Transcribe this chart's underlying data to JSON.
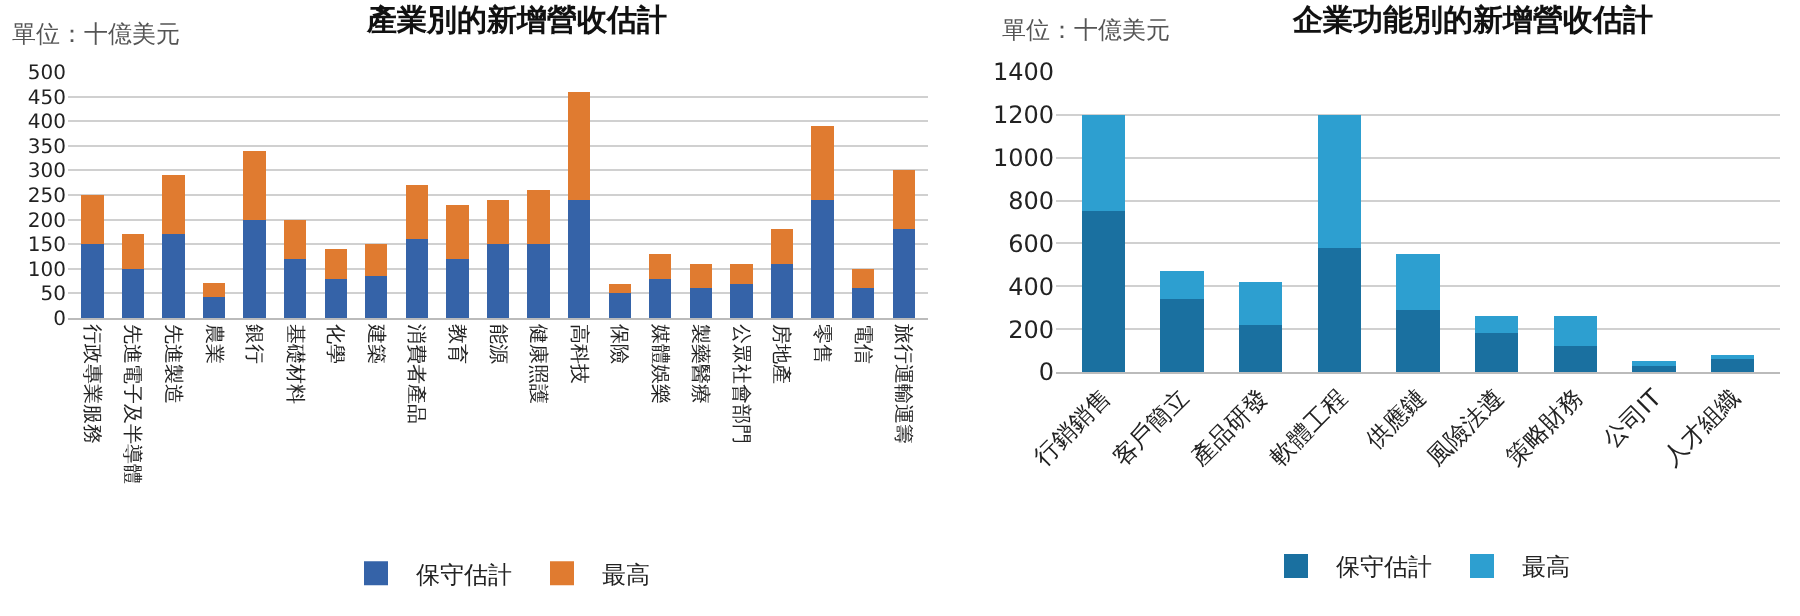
{
  "chart_data": [
    {
      "type": "bar",
      "stacked": true,
      "title": "產業別的新增營收估計",
      "annotations": [
        "單位：十億美元"
      ],
      "categories": [
        "行政專業服務",
        "先進電子及半導體",
        "先進製造",
        "農業",
        "銀行",
        "基礎材料",
        "化學",
        "建築",
        "消費者產品",
        "教育",
        "能源",
        "健康照護",
        "高科技",
        "保險",
        "媒體娛樂",
        "製藥醫療",
        "公眾社會部門",
        "房地產",
        "零售",
        "電信",
        "旅行運輸運籌"
      ],
      "series": [
        {
          "name": "保守估計",
          "color": "#3563a8",
          "values": [
            150,
            100,
            170,
            42,
            200,
            120,
            80,
            85,
            160,
            120,
            150,
            150,
            240,
            50,
            80,
            60,
            70,
            110,
            240,
            60,
            180
          ]
        },
        {
          "name": "最高",
          "color": "#e07b30",
          "values": [
            100,
            70,
            120,
            30,
            140,
            80,
            60,
            65,
            110,
            110,
            90,
            110,
            220,
            20,
            50,
            50,
            40,
            70,
            150,
            40,
            120
          ]
        }
      ],
      "ylim": [
        0,
        500
      ],
      "yticks": [
        0,
        50,
        100,
        150,
        200,
        250,
        300,
        350,
        400,
        450,
        500
      ],
      "grid": "y",
      "legend": "bottom"
    },
    {
      "type": "bar",
      "stacked": true,
      "title": "企業功能別的新增營收估計",
      "annotations": [
        "單位：十億美元"
      ],
      "categories": [
        "行銷銷售",
        "客戶簡立",
        "產品研發",
        "軟體工程",
        "供應鏈",
        "風險法遵",
        "策略財務",
        "公司IT",
        "人才組織"
      ],
      "series": [
        {
          "name": "保守估計",
          "color": "#1a70a0",
          "values": [
            750,
            340,
            220,
            580,
            290,
            180,
            120,
            30,
            60
          ]
        },
        {
          "name": "最高",
          "color": "#2d9fd0",
          "values": [
            450,
            130,
            200,
            620,
            260,
            80,
            140,
            20,
            20
          ]
        }
      ],
      "ylim": [
        0,
        1400
      ],
      "yticks": [
        0,
        200,
        400,
        600,
        800,
        1000,
        1200,
        1400
      ],
      "grid": "y",
      "legend": "bottom"
    }
  ]
}
